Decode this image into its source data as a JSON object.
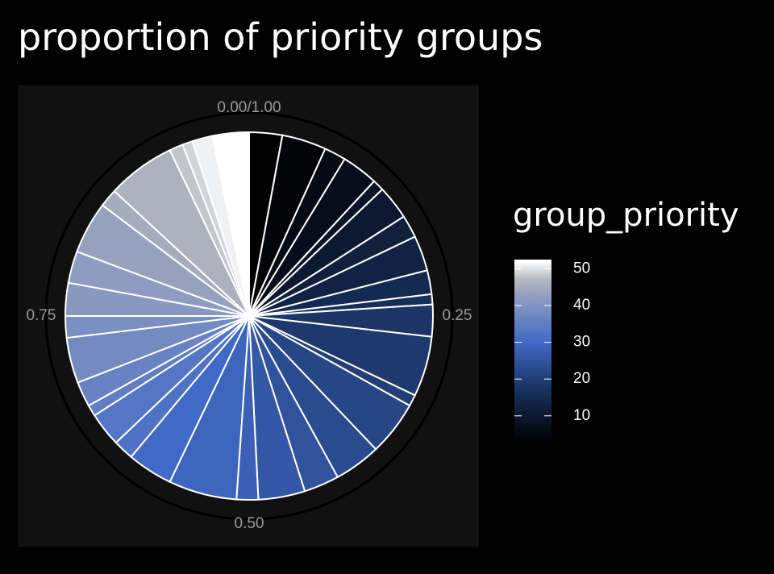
{
  "chart_data": {
    "type": "pie",
    "title": "proportion of priority groups",
    "values": [
      0.029,
      0.039,
      0.019,
      0.032,
      0.01,
      0.03,
      0.02,
      0.031,
      0.021,
      0.009,
      0.028,
      0.053,
      0.01,
      0.048,
      0.041,
      0.031,
      0.041,
      0.019,
      0.06,
      0.04,
      0.018,
      0.03,
      0.01,
      0.022,
      0.04,
      0.019,
      0.029,
      0.028,
      0.046,
      0.016,
      0.06,
      0.012,
      0.009,
      0.018,
      0.032
    ],
    "group_priority": [
      3,
      4,
      6,
      7,
      9,
      10,
      12,
      13,
      15,
      16,
      18,
      19,
      20,
      22,
      23,
      25,
      26,
      28,
      29,
      30,
      32,
      33,
      35,
      36,
      38,
      39,
      41,
      42,
      43,
      45,
      46,
      48,
      49,
      51,
      52
    ],
    "thetalim": [
      0,
      1
    ],
    "thetaticks": [
      {
        "value": 0,
        "label": "0.00/1.00"
      },
      0.25,
      {
        "value": 0.5,
        "label": "0.50"
      },
      0.75
    ],
    "legend_title": "group_priority",
    "colorbar_lim": [
      2.5,
      52.5
    ],
    "colorbar_ticks": [
      10,
      20,
      30,
      40,
      50
    ],
    "colorscale": [
      [
        3,
        "#000000"
      ],
      [
        18,
        "#1a3566"
      ],
      [
        30,
        "#4169c6"
      ],
      [
        42,
        "#8d9cc0"
      ],
      [
        47,
        "#b4b7bd"
      ],
      [
        52,
        "#ffffff"
      ]
    ],
    "slice_border": "#ffffff"
  }
}
